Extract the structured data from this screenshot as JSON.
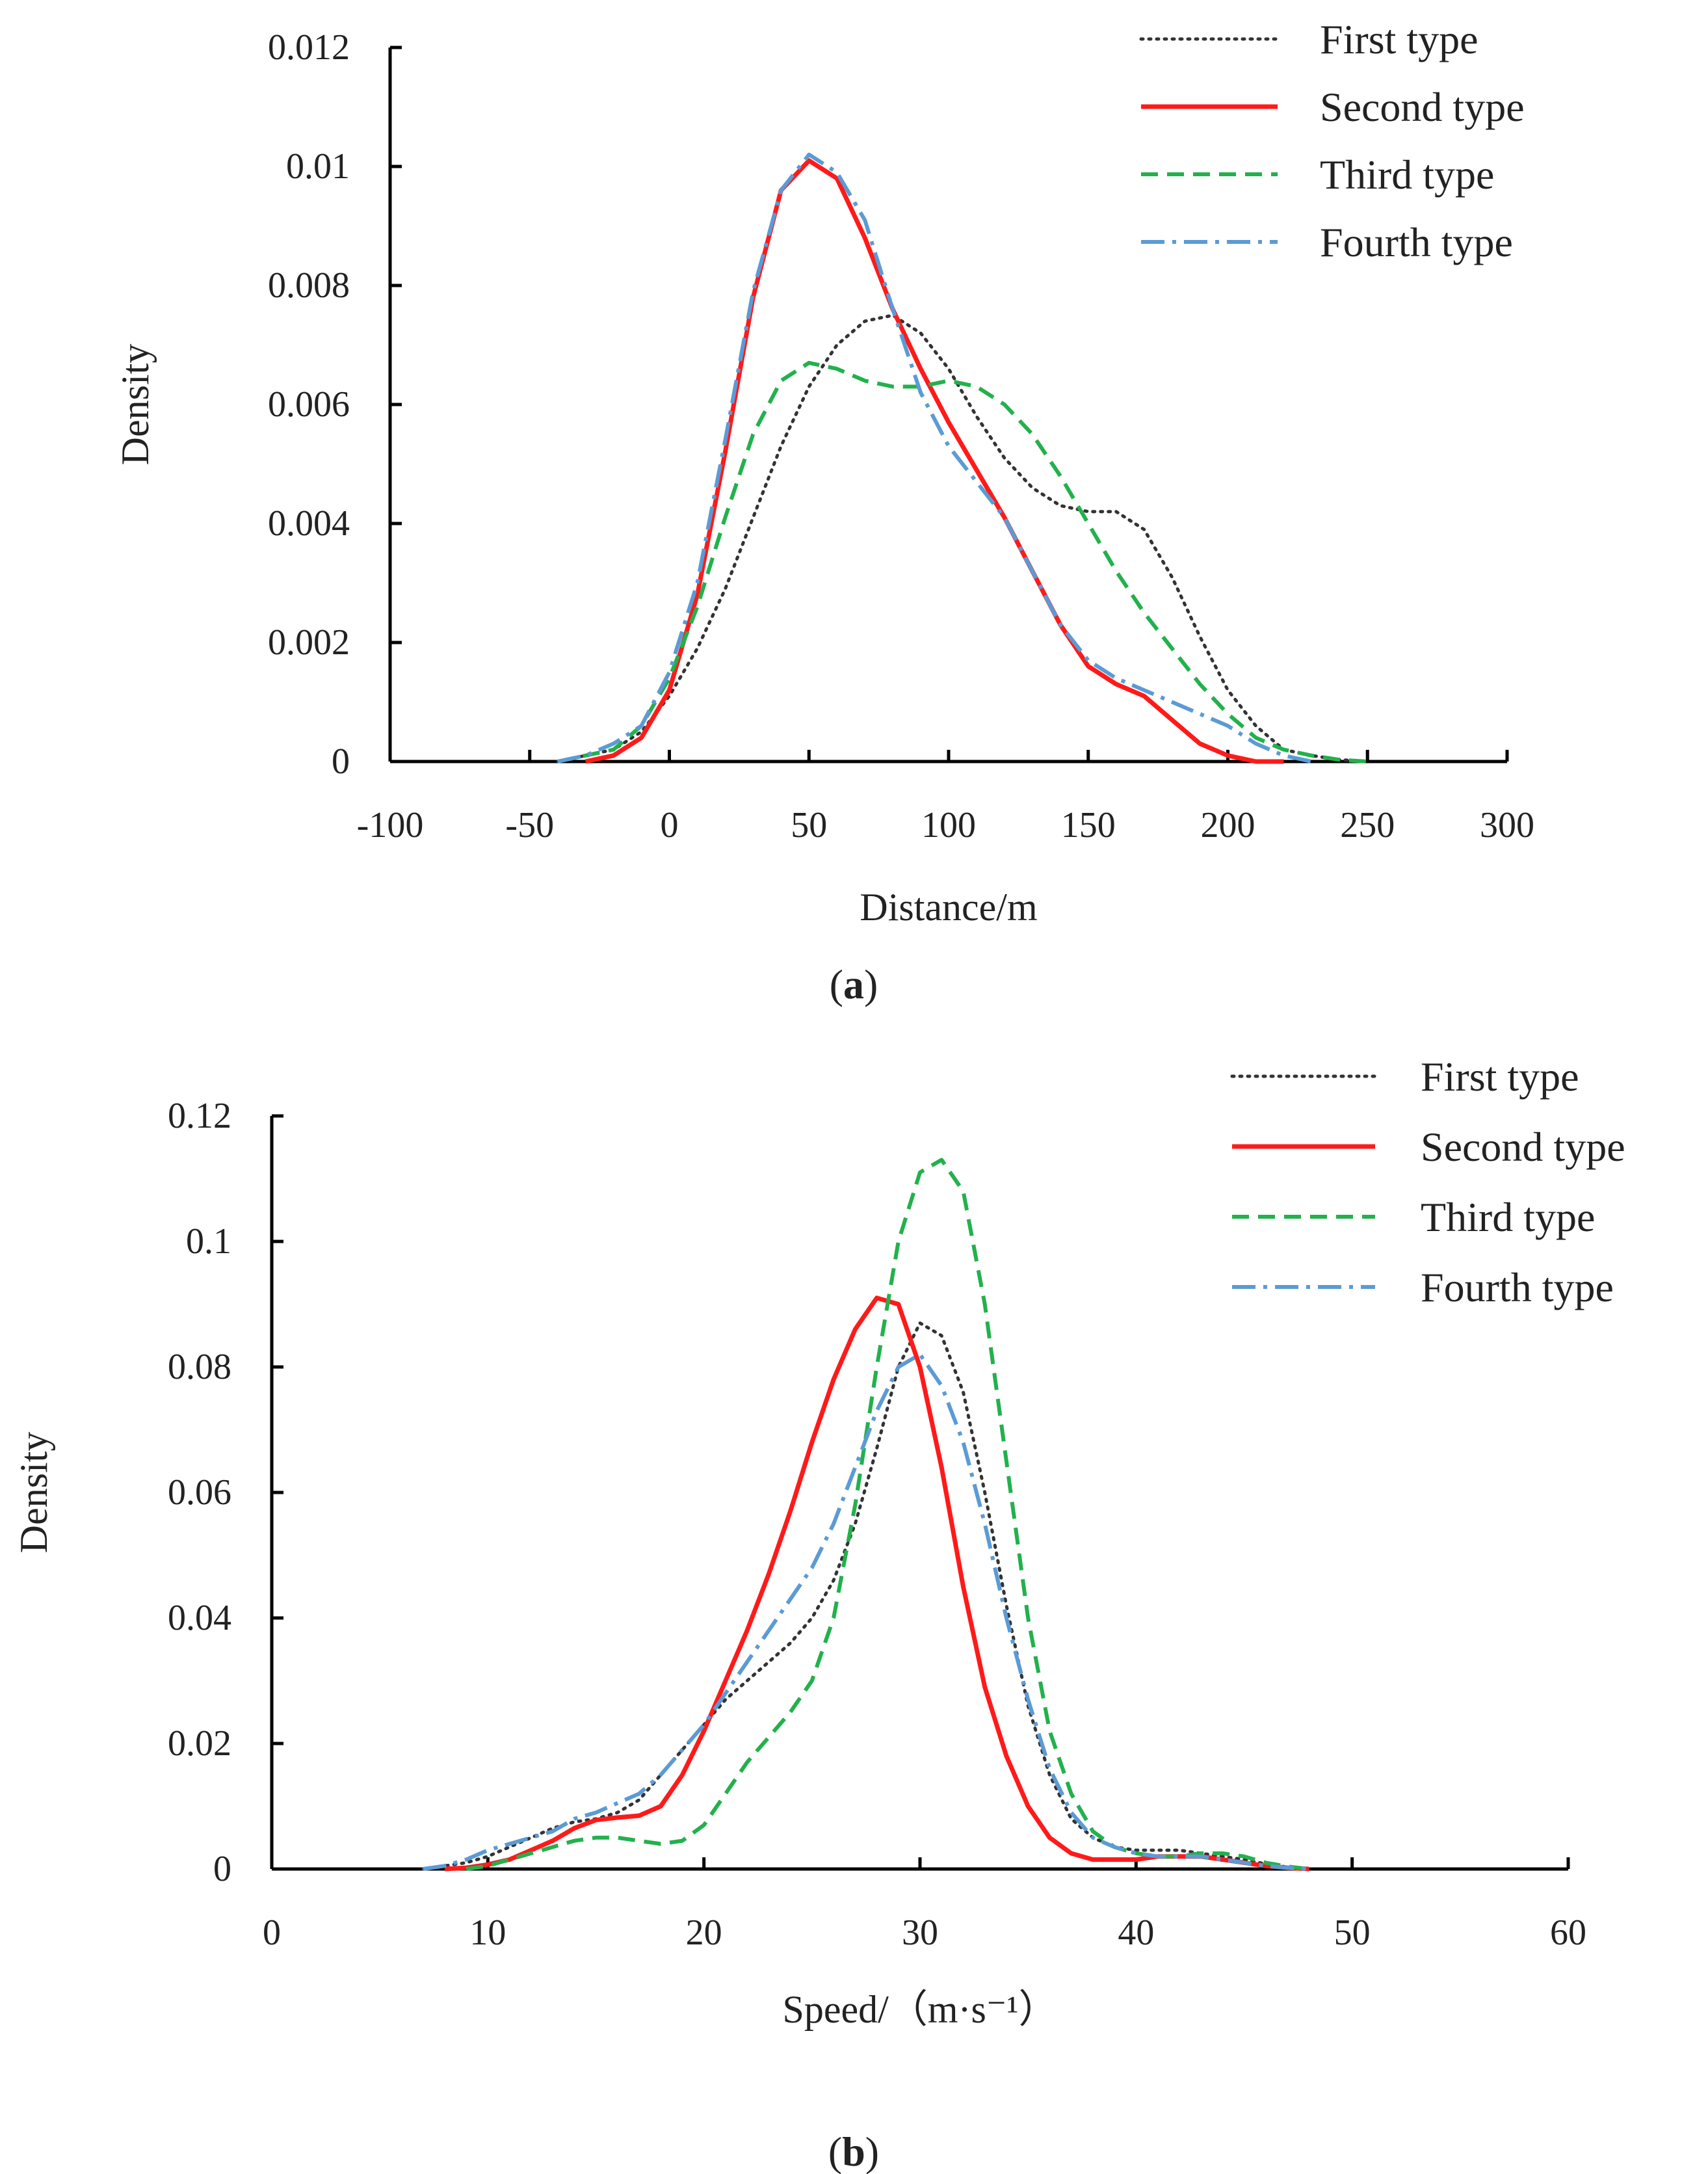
{
  "chart_data": [
    {
      "type": "line",
      "panel_label": "a",
      "xlabel": "Distance/m",
      "ylabel": "Density",
      "xlim": [
        -100,
        300
      ],
      "ylim": [
        0,
        0.012
      ],
      "x_ticks": [
        "-100",
        "-50",
        "0",
        "50",
        "100",
        "150",
        "200",
        "250",
        "300"
      ],
      "y_ticks": [
        "0",
        "0.002",
        "0.004",
        "0.006",
        "0.008",
        "0.01",
        "0.012"
      ],
      "legend_position": "top-right",
      "series": [
        {
          "name": "First type",
          "color": "#333333",
          "style": "dotted",
          "x": [
            -40,
            -30,
            -20,
            -10,
            0,
            10,
            20,
            30,
            40,
            50,
            60,
            70,
            80,
            90,
            100,
            110,
            120,
            130,
            140,
            150,
            160,
            170,
            180,
            190,
            200,
            210,
            220,
            230,
            240,
            250
          ],
          "y": [
            0,
            0.0001,
            0.0002,
            0.0005,
            0.0011,
            0.0019,
            0.0029,
            0.0041,
            0.0053,
            0.0063,
            0.007,
            0.0074,
            0.0075,
            0.0072,
            0.0066,
            0.0058,
            0.0051,
            0.0046,
            0.0043,
            0.0042,
            0.0042,
            0.0039,
            0.0031,
            0.0021,
            0.0012,
            0.0006,
            0.0002,
            0.0001,
            3e-05,
            0
          ]
        },
        {
          "name": "Second type",
          "color": "#ff1a1a",
          "style": "solid",
          "x": [
            -30,
            -20,
            -10,
            0,
            10,
            20,
            30,
            40,
            50,
            60,
            70,
            80,
            90,
            100,
            110,
            120,
            130,
            140,
            150,
            160,
            170,
            180,
            190,
            200,
            210,
            220
          ],
          "y": [
            0,
            0.0001,
            0.0004,
            0.0012,
            0.0028,
            0.0052,
            0.0078,
            0.0096,
            0.0101,
            0.0098,
            0.0088,
            0.0076,
            0.0066,
            0.0057,
            0.0049,
            0.0041,
            0.0032,
            0.0023,
            0.0016,
            0.0013,
            0.0011,
            0.0007,
            0.0003,
            0.0001,
            0,
            0
          ]
        },
        {
          "name": "Third type",
          "color": "#22b14c",
          "style": "dashed",
          "x": [
            -40,
            -30,
            -20,
            -10,
            0,
            10,
            20,
            30,
            40,
            50,
            60,
            70,
            80,
            90,
            100,
            110,
            120,
            130,
            140,
            150,
            160,
            170,
            180,
            190,
            200,
            210,
            220,
            230,
            240,
            250
          ],
          "y": [
            0,
            0.0001,
            0.0002,
            0.0006,
            0.0014,
            0.0026,
            0.0041,
            0.0055,
            0.0064,
            0.0067,
            0.0066,
            0.0064,
            0.0063,
            0.0063,
            0.0064,
            0.0063,
            0.006,
            0.0055,
            0.0048,
            0.004,
            0.0032,
            0.0025,
            0.0019,
            0.0013,
            0.0008,
            0.0004,
            0.0002,
            0.0001,
            3e-05,
            0
          ]
        },
        {
          "name": "Fourth type",
          "color": "#5b9bd5",
          "style": "dashdot",
          "x": [
            -40,
            -30,
            -20,
            -10,
            0,
            10,
            20,
            30,
            40,
            50,
            60,
            70,
            80,
            90,
            100,
            110,
            120,
            130,
            140,
            150,
            160,
            170,
            180,
            190,
            200,
            210,
            220,
            230
          ],
          "y": [
            0,
            0.0001,
            0.0003,
            0.0006,
            0.0015,
            0.003,
            0.0054,
            0.0079,
            0.0096,
            0.0102,
            0.0099,
            0.0091,
            0.0076,
            0.0062,
            0.0053,
            0.0047,
            0.0041,
            0.0032,
            0.0023,
            0.0017,
            0.0014,
            0.0012,
            0.001,
            0.0008,
            0.0006,
            0.0003,
            0.0001,
            0
          ]
        }
      ]
    },
    {
      "type": "line",
      "panel_label": "b",
      "xlabel": "Speed/（m·s⁻¹）",
      "ylabel": "Density",
      "xlim": [
        0,
        60
      ],
      "ylim": [
        0,
        0.12
      ],
      "x_ticks": [
        "0",
        "10",
        "20",
        "30",
        "40",
        "50",
        "60"
      ],
      "y_ticks": [
        "0",
        "0.02",
        "0.04",
        "0.06",
        "0.08",
        "0.1",
        "0.12"
      ],
      "legend_position": "top-right",
      "series": [
        {
          "name": "First type",
          "color": "#333333",
          "style": "dotted",
          "x": [
            7,
            8,
            9,
            10,
            11,
            12,
            13,
            14,
            15,
            16,
            17,
            18,
            19,
            20,
            21,
            22,
            23,
            24,
            25,
            26,
            27,
            28,
            29,
            30,
            31,
            32,
            33,
            34,
            35,
            36,
            37,
            38,
            39,
            40,
            41,
            42,
            43,
            44,
            45,
            46,
            47,
            48
          ],
          "y": [
            0,
            0.0005,
            0.001,
            0.002,
            0.0035,
            0.005,
            0.0065,
            0.0075,
            0.008,
            0.009,
            0.011,
            0.015,
            0.019,
            0.023,
            0.027,
            0.03,
            0.033,
            0.036,
            0.04,
            0.046,
            0.055,
            0.067,
            0.08,
            0.087,
            0.085,
            0.076,
            0.06,
            0.042,
            0.026,
            0.015,
            0.008,
            0.005,
            0.0035,
            0.003,
            0.003,
            0.003,
            0.0025,
            0.002,
            0.0015,
            0.0008,
            0.0003,
            0
          ]
        },
        {
          "name": "Second type",
          "color": "#ff1a1a",
          "style": "solid",
          "x": [
            8,
            9,
            10,
            11,
            12,
            13,
            14,
            15,
            16,
            17,
            18,
            19,
            20,
            21,
            22,
            23,
            24,
            25,
            26,
            27,
            28,
            29,
            30,
            31,
            32,
            33,
            34,
            35,
            36,
            37,
            38,
            39,
            40,
            41,
            42,
            43,
            44,
            45,
            46,
            47,
            48
          ],
          "y": [
            0,
            0.0002,
            0.0007,
            0.0015,
            0.003,
            0.0045,
            0.0065,
            0.0078,
            0.0082,
            0.0085,
            0.01,
            0.015,
            0.022,
            0.03,
            0.038,
            0.047,
            0.057,
            0.068,
            0.078,
            0.086,
            0.091,
            0.09,
            0.08,
            0.064,
            0.045,
            0.029,
            0.018,
            0.01,
            0.005,
            0.0025,
            0.0015,
            0.0015,
            0.0015,
            0.002,
            0.002,
            0.002,
            0.0015,
            0.001,
            0.0005,
            0.0002,
            0
          ]
        },
        {
          "name": "Third type",
          "color": "#22b14c",
          "style": "dashed",
          "x": [
            9,
            10,
            11,
            12,
            13,
            14,
            15,
            16,
            17,
            18,
            19,
            20,
            21,
            22,
            23,
            24,
            25,
            26,
            27,
            28,
            29,
            30,
            31,
            32,
            33,
            34,
            35,
            36,
            37,
            38,
            39,
            40,
            41,
            42,
            43,
            44,
            45,
            46,
            47,
            48
          ],
          "y": [
            0,
            0.0005,
            0.0015,
            0.0025,
            0.0035,
            0.0045,
            0.005,
            0.005,
            0.0045,
            0.004,
            0.0045,
            0.007,
            0.012,
            0.017,
            0.021,
            0.025,
            0.03,
            0.04,
            0.058,
            0.08,
            0.1,
            0.111,
            0.113,
            0.108,
            0.09,
            0.065,
            0.04,
            0.022,
            0.012,
            0.006,
            0.0035,
            0.0025,
            0.002,
            0.002,
            0.0025,
            0.0025,
            0.002,
            0.001,
            0.0004,
            0
          ]
        },
        {
          "name": "Fourth type",
          "color": "#5b9bd5",
          "style": "dashdot",
          "x": [
            7,
            8,
            9,
            10,
            11,
            12,
            13,
            14,
            15,
            16,
            17,
            18,
            19,
            20,
            21,
            22,
            23,
            24,
            25,
            26,
            27,
            28,
            29,
            30,
            31,
            32,
            33,
            34,
            35,
            36,
            37,
            38,
            39,
            40,
            41,
            42,
            43,
            44,
            45,
            46,
            47,
            48
          ],
          "y": [
            0,
            0.0005,
            0.0015,
            0.003,
            0.004,
            0.005,
            0.006,
            0.008,
            0.009,
            0.0105,
            0.012,
            0.015,
            0.019,
            0.023,
            0.028,
            0.033,
            0.038,
            0.043,
            0.048,
            0.055,
            0.064,
            0.073,
            0.08,
            0.082,
            0.077,
            0.068,
            0.055,
            0.04,
            0.027,
            0.016,
            0.009,
            0.005,
            0.0035,
            0.0025,
            0.002,
            0.002,
            0.002,
            0.0015,
            0.001,
            0.0005,
            0.0002,
            0
          ]
        }
      ]
    }
  ]
}
